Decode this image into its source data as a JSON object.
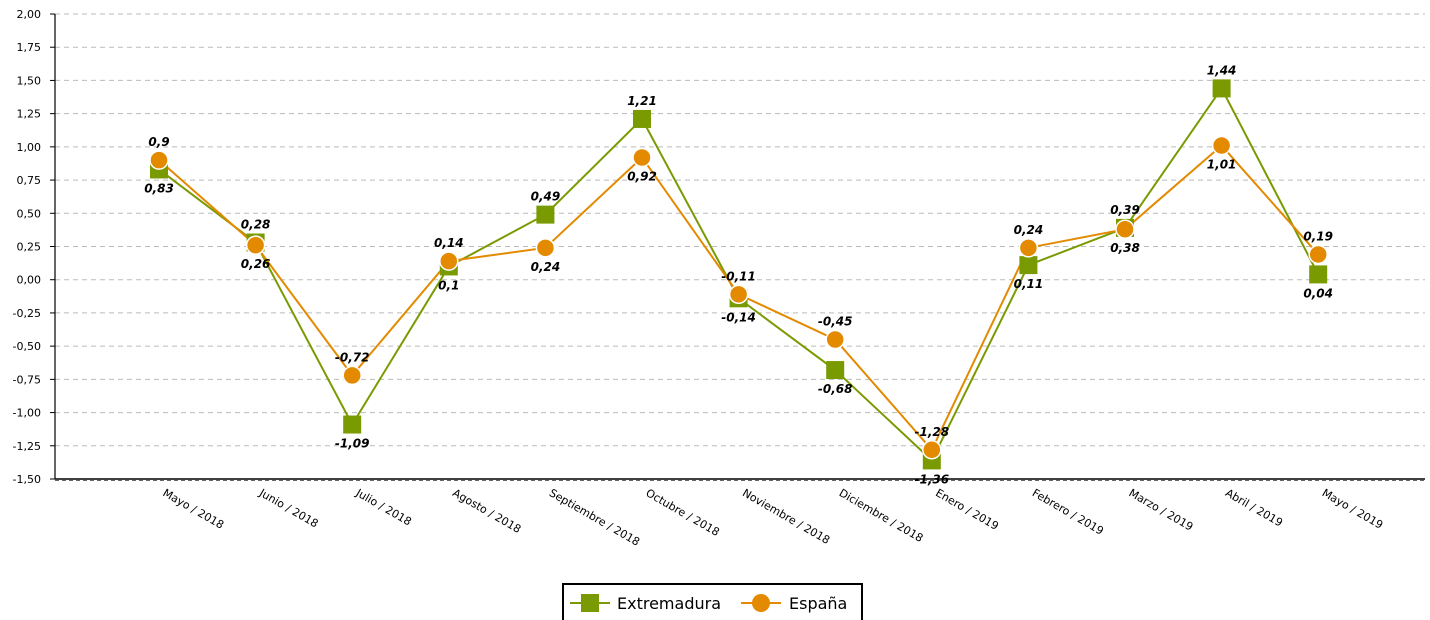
{
  "chart_data": {
    "type": "line",
    "categories": [
      "Mayo / 2018",
      "Junio / 2018",
      "Julio / 2018",
      "Agosto / 2018",
      "Septiembre / 2018",
      "Octubre / 2018",
      "Noviembre / 2018",
      "Diciembre / 2018",
      "Enero / 2019",
      "Febrero / 2019",
      "Marzo / 2019",
      "Abril / 2019",
      "Mayo / 2019"
    ],
    "y_ticks": [
      "2,00",
      "1,75",
      "1,50",
      "1,25",
      "1,00",
      "0,75",
      "0,50",
      "0,25",
      "0,00",
      "-0,25",
      "-0,50",
      "-0,75",
      "-1,00",
      "-1,25",
      "-1,50"
    ],
    "ylim": [
      -1.5,
      2.0
    ],
    "grid": true,
    "legend_position": "bottom-center",
    "series": [
      {
        "name": "Extremadura",
        "color": "#7a9a01",
        "marker": "square",
        "values": [
          0.83,
          0.28,
          -1.09,
          0.1,
          0.49,
          1.21,
          -0.14,
          -0.68,
          -1.36,
          0.11,
          0.39,
          1.44,
          0.04
        ],
        "labels": [
          "0,83",
          "0,28",
          "-1,09",
          "0,1",
          "0,49",
          "1,21",
          "-0,14",
          "-0,68",
          "-1,36",
          "0,11",
          "0,39",
          "1,44",
          "0,04"
        ]
      },
      {
        "name": "España",
        "color": "#e38a00",
        "marker": "circle",
        "values": [
          0.9,
          0.26,
          -0.72,
          0.14,
          0.24,
          0.92,
          -0.11,
          -0.45,
          -1.28,
          0.24,
          0.38,
          1.01,
          0.19
        ],
        "labels": [
          "0,9",
          "0,26",
          "-0,72",
          "0,14",
          "0,24",
          "0,92",
          "-0,11",
          "-0,45",
          "-1,28",
          "0,24",
          "0,38",
          "1,01",
          "0,19"
        ]
      }
    ]
  }
}
